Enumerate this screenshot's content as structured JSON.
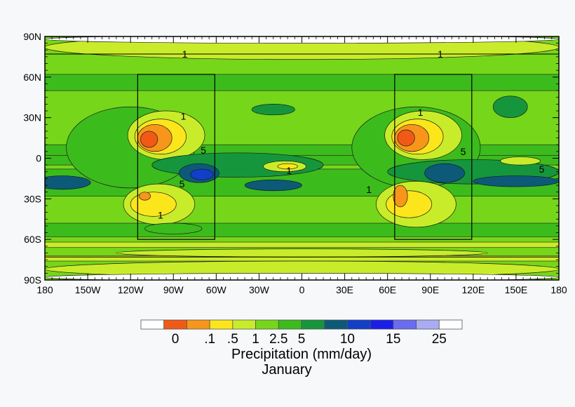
{
  "chart_data": {
    "type": "heatmap",
    "title": "Precipitation (mm/day)",
    "subtitle": "January",
    "x_ticks": [
      "180",
      "150W",
      "120W",
      "90W",
      "60W",
      "30W",
      "0",
      "30E",
      "60E",
      "90E",
      "120E",
      "150E",
      "180"
    ],
    "y_ticks": [
      "90N",
      "60N",
      "30N",
      "0",
      "30S",
      "60S",
      "90S"
    ],
    "xlim": [
      -180,
      180
    ],
    "ylim": [
      -90,
      90
    ],
    "color_levels": [
      "#ffffff",
      "#f05a16",
      "#f7961a",
      "#fbe61c",
      "#c9ec2a",
      "#76d61a",
      "#3cbb1d",
      "#16963c",
      "#0c5a78",
      "#123ec8",
      "#1a1ee8",
      "#6a6cf0",
      "#a9acf4",
      "#ffffff"
    ],
    "legend_labels": [
      "0",
      ".1",
      ".5",
      "1",
      "2.5",
      "5",
      "10",
      "15",
      "25"
    ],
    "legend_label_index": [
      1,
      2,
      3,
      4,
      5,
      6,
      8,
      10,
      12
    ],
    "boxes": [
      {
        "lon": [
          -115,
          -61
        ],
        "lat": [
          -60,
          62
        ]
      },
      {
        "lon": [
          65,
          119
        ],
        "lat": [
          -60,
          62
        ]
      }
    ],
    "contour_labels": [
      {
        "text": "1",
        "lon": -82,
        "lat": 77
      },
      {
        "text": "1",
        "lon": 97,
        "lat": 77
      },
      {
        "text": "1",
        "lon": -83,
        "lat": 31
      },
      {
        "text": "1",
        "lon": 83,
        "lat": 34
      },
      {
        "text": "5",
        "lon": -69,
        "lat": 6
      },
      {
        "text": "5",
        "lon": 113,
        "lat": 5
      },
      {
        "text": "1",
        "lon": -9,
        "lat": -9
      },
      {
        "text": "5",
        "lon": -84,
        "lat": -19
      },
      {
        "text": "5",
        "lon": 168,
        "lat": -8
      },
      {
        "text": "1",
        "lon": -99,
        "lat": -42
      },
      {
        "text": "1",
        "lon": 47,
        "lat": -23
      }
    ],
    "features": [
      {
        "lon": 0,
        "lat": 82,
        "rx": 180,
        "ry": 9,
        "level": 4
      },
      {
        "lon": 0,
        "lat": 88,
        "rx": 180,
        "ry": 3,
        "level": 0
      },
      {
        "lon": 0,
        "lat": -82,
        "rx": 180,
        "ry": 6,
        "level": 4
      },
      {
        "lon": 0,
        "lat": -88,
        "rx": 180,
        "ry": 3,
        "level": 0
      },
      {
        "lon": 0,
        "lat": -70,
        "rx": 130,
        "ry": 3,
        "level": 4
      },
      {
        "lon": -120,
        "lat": 8,
        "rx": 45,
        "ry": 30,
        "level": 6
      },
      {
        "lon": -95,
        "lat": 17,
        "rx": 27,
        "ry": 18,
        "level": 4
      },
      {
        "lon": -99,
        "lat": 16,
        "rx": 18,
        "ry": 13,
        "level": 3
      },
      {
        "lon": -103,
        "lat": 15,
        "rx": 12,
        "ry": 10,
        "level": 2
      },
      {
        "lon": -107,
        "lat": 14,
        "rx": 6,
        "ry": 6,
        "level": 1
      },
      {
        "lon": 80,
        "lat": 8,
        "rx": 45,
        "ry": 30,
        "level": 6
      },
      {
        "lon": 85,
        "lat": 17,
        "rx": 27,
        "ry": 18,
        "level": 4
      },
      {
        "lon": 81,
        "lat": 16,
        "rx": 18,
        "ry": 13,
        "level": 3
      },
      {
        "lon": 77,
        "lat": 15,
        "rx": 12,
        "ry": 10,
        "level": 2
      },
      {
        "lon": 73,
        "lat": 15,
        "rx": 6,
        "ry": 6,
        "level": 1
      },
      {
        "lon": -100,
        "lat": -34,
        "rx": 25,
        "ry": 15,
        "level": 4
      },
      {
        "lon": -104,
        "lat": -34,
        "rx": 16,
        "ry": 9,
        "level": 3
      },
      {
        "lon": -110,
        "lat": -28,
        "rx": 4,
        "ry": 3,
        "level": 2
      },
      {
        "lon": 80,
        "lat": -34,
        "rx": 28,
        "ry": 17,
        "level": 4
      },
      {
        "lon": 75,
        "lat": -34,
        "rx": 16,
        "ry": 10,
        "level": 3
      },
      {
        "lon": 69,
        "lat": -28,
        "rx": 5,
        "ry": 8,
        "level": 2
      },
      {
        "lon": -45,
        "lat": -5,
        "rx": 60,
        "ry": 9,
        "level": 7
      },
      {
        "lon": -72,
        "lat": -11,
        "rx": 14,
        "ry": 7,
        "level": 8
      },
      {
        "lon": -70,
        "lat": -12,
        "rx": 8,
        "ry": 4,
        "level": 9
      },
      {
        "lon": 120,
        "lat": -10,
        "rx": 60,
        "ry": 9,
        "level": 7
      },
      {
        "lon": 100,
        "lat": -11,
        "rx": 14,
        "ry": 7,
        "level": 8
      },
      {
        "lon": 150,
        "lat": -17,
        "rx": 30,
        "ry": 4,
        "level": 8
      },
      {
        "lon": -12,
        "lat": -6,
        "rx": 15,
        "ry": 4,
        "level": 4
      },
      {
        "lon": -10,
        "lat": -6,
        "rx": 7,
        "ry": 2,
        "level": 3
      },
      {
        "lon": 153,
        "lat": -2,
        "rx": 14,
        "ry": 3,
        "level": 4
      },
      {
        "lon": -168,
        "lat": -18,
        "rx": 20,
        "ry": 5,
        "level": 8
      },
      {
        "lon": -20,
        "lat": -20,
        "rx": 20,
        "ry": 4,
        "level": 8
      },
      {
        "lon": 146,
        "lat": 38,
        "rx": 12,
        "ry": 8,
        "level": 7
      },
      {
        "lon": -20,
        "lat": 36,
        "rx": 15,
        "ry": 4,
        "level": 7
      },
      {
        "lon": -90,
        "lat": -52,
        "rx": 20,
        "ry": 4,
        "level": 6
      }
    ]
  }
}
